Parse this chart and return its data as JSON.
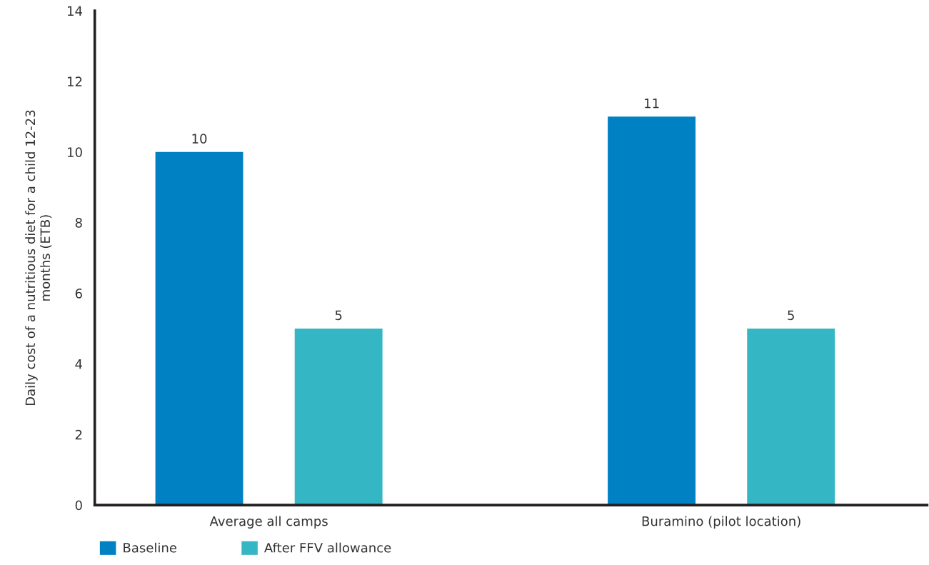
{
  "chart_data": {
    "type": "bar",
    "ylabel": "Daily cost of a nutritious diet for a child 12-23\nmonths (ETB)",
    "categories": [
      "Average all camps",
      "Buramino (pilot location)"
    ],
    "series": [
      {
        "name": "Baseline",
        "color": "#0081c4",
        "values": [
          10,
          11
        ]
      },
      {
        "name": "After FFV allowance",
        "color": "#35b6c4",
        "values": [
          5,
          5
        ]
      }
    ],
    "ylim": [
      0,
      14
    ],
    "yticks": [
      0,
      2,
      4,
      6,
      8,
      10,
      12,
      14
    ],
    "data_labels": true,
    "legend": "bottom left",
    "grid": false
  }
}
